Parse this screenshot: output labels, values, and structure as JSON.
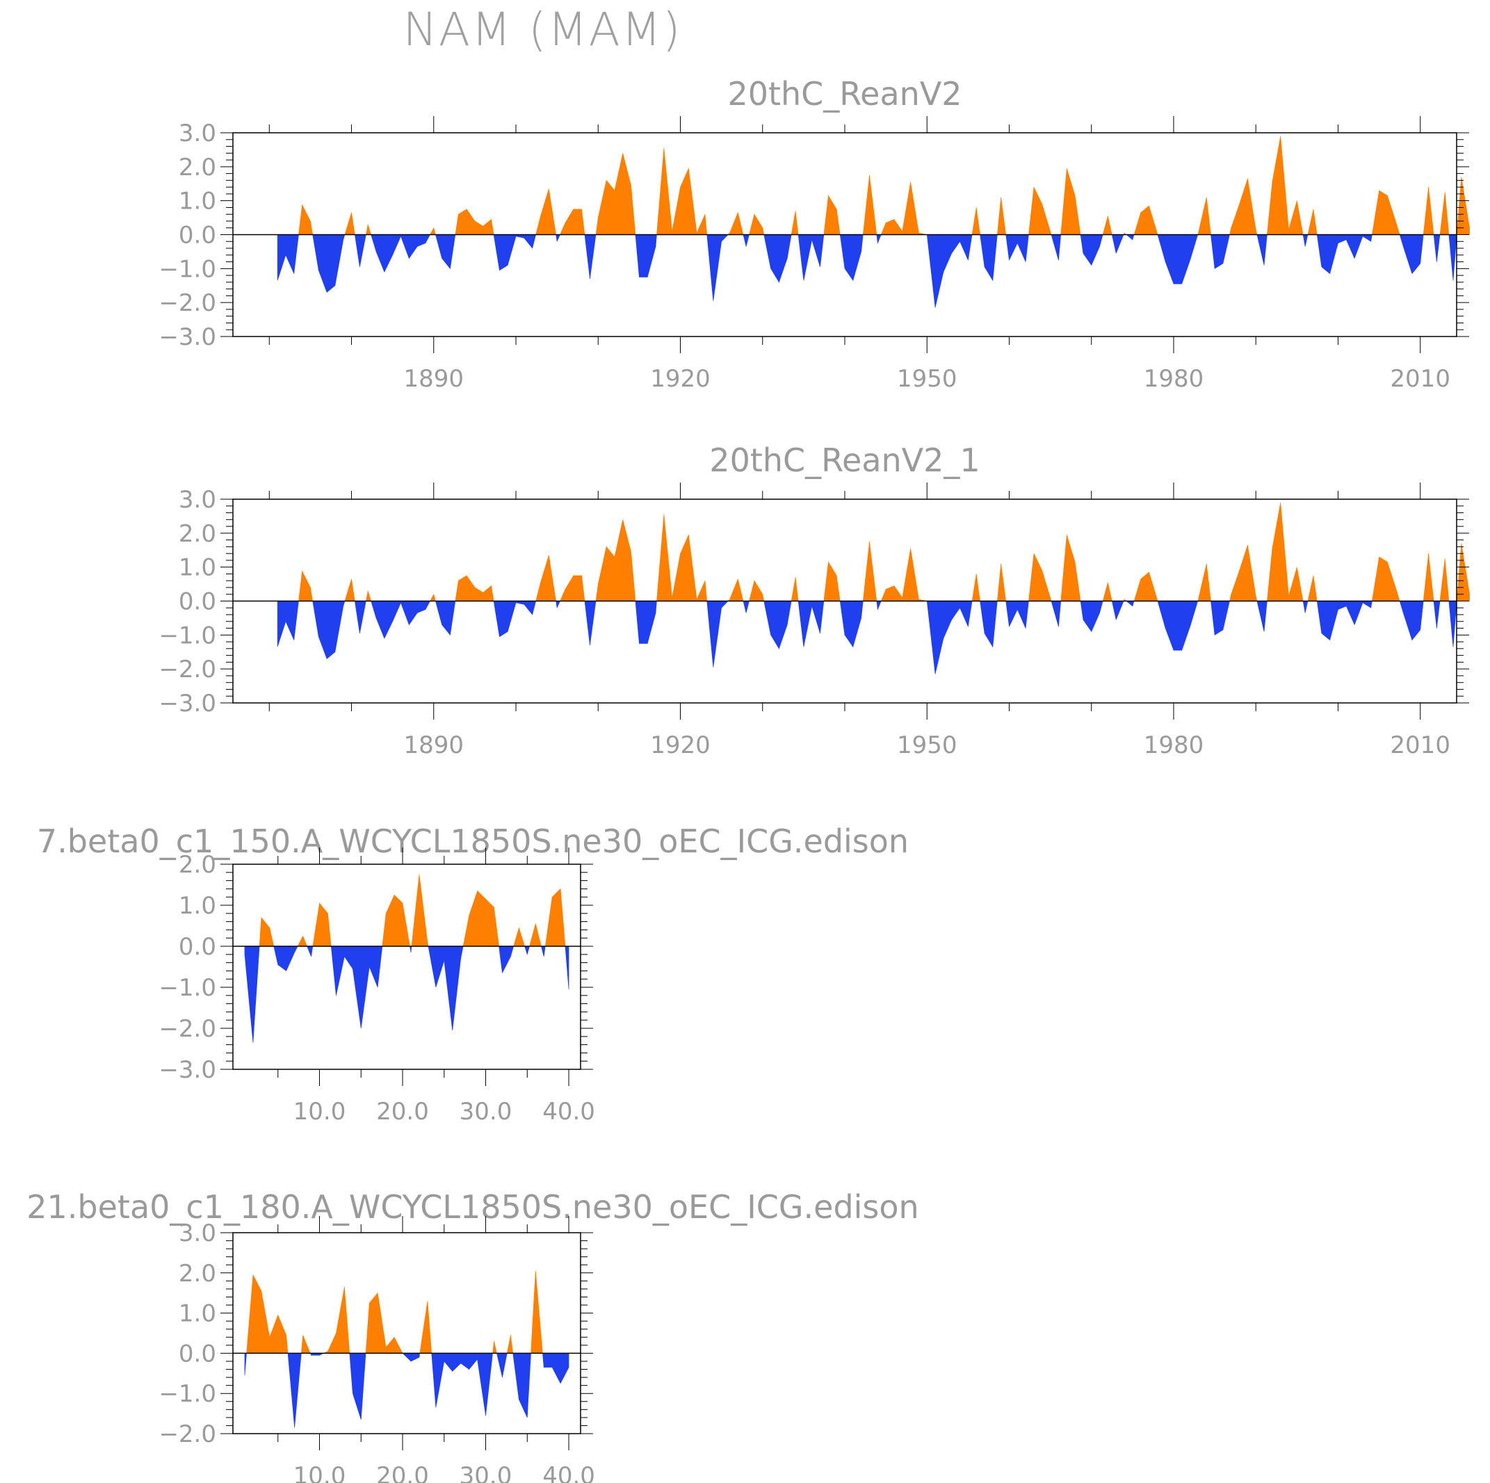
{
  "title": "NAM (MAM)",
  "colors": {
    "positive": "#ff8000",
    "negative": "#2040f0",
    "frame": "#000000",
    "text": "#9a9a9a"
  },
  "chart_data": [
    {
      "type": "area",
      "title": "20thC_ReanV2",
      "xlim": [
        1866,
        2014
      ],
      "ylim": [
        -3,
        3
      ],
      "xticks": [
        1890,
        1920,
        1950,
        1980,
        2010
      ],
      "xtick_labels": [
        "1890",
        "1920",
        "1950",
        "1980",
        "2010"
      ],
      "xminor": [
        1870,
        1880,
        1900,
        1910,
        1930,
        1940,
        1960,
        1970,
        1990,
        2000
      ],
      "yticks": [
        -3,
        -2,
        -1,
        0,
        1,
        2,
        3
      ],
      "ytick_labels": [
        "−3.0",
        "−2.0",
        "−1.0",
        "0.0",
        "1.0",
        "2.0",
        "3.0"
      ],
      "x_start": 1871,
      "values": [
        -1.35,
        -0.6,
        -1.15,
        0.88,
        0.4,
        -1.05,
        -1.7,
        -1.5,
        -0.15,
        0.65,
        -0.95,
        0.3,
        -0.5,
        -1.1,
        -0.6,
        -0.05,
        -0.7,
        -0.35,
        -0.25,
        0.2,
        -0.7,
        -1.0,
        0.6,
        0.75,
        0.4,
        0.25,
        0.45,
        -1.05,
        -0.9,
        -0.05,
        -0.1,
        -0.4,
        0.55,
        1.35,
        -0.2,
        0.35,
        0.75,
        0.75,
        -1.3,
        0.5,
        1.6,
        1.3,
        2.4,
        1.45,
        -1.25,
        -1.25,
        -0.35,
        2.55,
        0.1,
        1.4,
        1.95,
        0.05,
        0.6,
        -1.95,
        -0.2,
        0.05,
        0.65,
        -0.35,
        0.6,
        0.2,
        -1.0,
        -1.4,
        -0.7,
        0.7,
        -1.35,
        -0.15,
        -0.95,
        1.15,
        0.75,
        -1.0,
        -1.35,
        -0.5,
        1.75,
        -0.25,
        0.35,
        0.45,
        0.1,
        1.55,
        0.05,
        0.0,
        -2.15,
        -1.1,
        -0.55,
        -0.2,
        -0.75,
        0.8,
        -0.95,
        -1.35,
        1.1,
        -0.75,
        -0.25,
        -0.8,
        1.4,
        0.9,
        0.1,
        -0.75,
        1.95,
        1.15,
        -0.55,
        -0.9,
        -0.35,
        0.55,
        -0.55,
        0.05,
        -0.15,
        0.65,
        0.85,
        0.05,
        -0.8,
        -1.45,
        -1.45,
        -0.75,
        0.05,
        1.1,
        -1.0,
        -0.85,
        0.2,
        0.9,
        1.65,
        0.15,
        -0.9,
        1.55,
        2.9,
        0.15,
        1.0,
        -0.35,
        0.75,
        -0.95,
        -1.15,
        -0.25,
        -0.15,
        -0.7,
        -0.05,
        -0.2,
        1.3,
        1.15,
        0.4,
        -0.4,
        -1.15,
        -0.85,
        1.4,
        -0.8,
        1.25,
        -1.35,
        1.7,
        0.2
      ]
    },
    {
      "type": "area",
      "title": "20thC_ReanV2_1",
      "xlim": [
        1866,
        2014
      ],
      "ylim": [
        -3,
        3
      ],
      "xticks": [
        1890,
        1920,
        1950,
        1980,
        2010
      ],
      "xtick_labels": [
        "1890",
        "1920",
        "1950",
        "1980",
        "2010"
      ],
      "xminor": [
        1870,
        1880,
        1900,
        1910,
        1930,
        1940,
        1960,
        1970,
        1990,
        2000
      ],
      "yticks": [
        -3,
        -2,
        -1,
        0,
        1,
        2,
        3
      ],
      "ytick_labels": [
        "−3.0",
        "−2.0",
        "−1.0",
        "0.0",
        "1.0",
        "2.0",
        "3.0"
      ],
      "x_start": 1871,
      "values": [
        -1.35,
        -0.6,
        -1.15,
        0.88,
        0.4,
        -1.05,
        -1.7,
        -1.5,
        -0.15,
        0.65,
        -0.95,
        0.3,
        -0.5,
        -1.1,
        -0.6,
        -0.05,
        -0.7,
        -0.35,
        -0.25,
        0.2,
        -0.7,
        -1.0,
        0.6,
        0.75,
        0.4,
        0.25,
        0.45,
        -1.05,
        -0.9,
        -0.05,
        -0.1,
        -0.4,
        0.55,
        1.35,
        -0.2,
        0.35,
        0.75,
        0.75,
        -1.3,
        0.5,
        1.6,
        1.3,
        2.4,
        1.45,
        -1.25,
        -1.25,
        -0.35,
        2.55,
        0.1,
        1.4,
        1.95,
        0.05,
        0.6,
        -1.95,
        -0.2,
        0.05,
        0.65,
        -0.35,
        0.6,
        0.2,
        -1.0,
        -1.4,
        -0.7,
        0.7,
        -1.35,
        -0.15,
        -0.95,
        1.15,
        0.75,
        -1.0,
        -1.35,
        -0.5,
        1.75,
        -0.25,
        0.35,
        0.45,
        0.1,
        1.55,
        0.05,
        0.0,
        -2.15,
        -1.1,
        -0.55,
        -0.2,
        -0.75,
        0.8,
        -0.95,
        -1.35,
        1.1,
        -0.75,
        -0.25,
        -0.8,
        1.4,
        0.9,
        0.1,
        -0.75,
        1.95,
        1.15,
        -0.55,
        -0.9,
        -0.35,
        0.55,
        -0.55,
        0.05,
        -0.15,
        0.65,
        0.85,
        0.05,
        -0.8,
        -1.45,
        -1.45,
        -0.75,
        0.05,
        1.1,
        -1.0,
        -0.85,
        0.2,
        0.9,
        1.65,
        0.15,
        -0.9,
        1.55,
        2.9,
        0.15,
        1.0,
        -0.35,
        0.75,
        -0.95,
        -1.15,
        -0.25,
        -0.15,
        -0.7,
        -0.05,
        -0.2,
        1.3,
        1.15,
        0.4,
        -0.4,
        -1.15,
        -0.85,
        1.4,
        -0.8,
        1.25,
        -1.35,
        1.7,
        0.2
      ]
    },
    {
      "type": "area",
      "title": "7.beta0_c1_150.A_WCYCL1850S.ne30_oEC_ICG.edison",
      "xlim": [
        0,
        41
      ],
      "ylim": [
        -3,
        2
      ],
      "xticks": [
        10,
        20,
        30,
        40
      ],
      "xtick_labels": [
        "10.0",
        "20.0",
        "30.0",
        "40.0"
      ],
      "xminor": [
        5,
        15,
        25,
        35
      ],
      "yticks": [
        -3,
        -2,
        -1,
        0,
        1,
        2
      ],
      "ytick_labels": [
        "−3.0",
        "−2.0",
        "−1.0",
        "0.0",
        "1.0",
        "2.0"
      ],
      "x_start": 1,
      "values": [
        -0.2,
        -2.35,
        0.7,
        0.45,
        -0.45,
        -0.6,
        -0.15,
        0.25,
        -0.25,
        1.05,
        0.8,
        -1.2,
        -0.25,
        -0.55,
        -2.0,
        -0.5,
        -1.0,
        0.8,
        1.25,
        1.05,
        -0.15,
        1.75,
        0.1,
        -1.0,
        -0.35,
        -2.05,
        -0.3,
        0.75,
        1.35,
        1.15,
        0.95,
        -0.65,
        -0.25,
        0.45,
        -0.2,
        0.55,
        -0.25,
        1.2,
        1.4,
        -1.05
      ]
    },
    {
      "type": "area",
      "title": "21.beta0_c1_180.A_WCYCL1850S.ne30_oEC_ICG.edison",
      "xlim": [
        0,
        41
      ],
      "ylim": [
        -2,
        3
      ],
      "xticks": [
        10,
        20,
        30,
        40
      ],
      "xtick_labels": [
        "10.0",
        "20.0",
        "30.0",
        "40.0"
      ],
      "xminor": [
        5,
        15,
        25,
        35
      ],
      "yticks": [
        -2,
        -1,
        0,
        1,
        2,
        3
      ],
      "ytick_labels": [
        "−2.0",
        "−1.0",
        "0.0",
        "1.0",
        "2.0",
        "3.0"
      ],
      "x_start": 1,
      "values": [
        -0.55,
        1.95,
        1.55,
        0.4,
        0.95,
        0.45,
        -1.85,
        0.45,
        -0.05,
        -0.05,
        0.05,
        0.5,
        1.65,
        -1.0,
        -1.65,
        1.25,
        1.5,
        0.15,
        0.4,
        0.0,
        -0.2,
        -0.1,
        1.3,
        -1.35,
        -0.2,
        -0.45,
        -0.25,
        -0.4,
        -0.15,
        -1.55,
        0.3,
        -0.6,
        0.45,
        -1.15,
        -1.6,
        2.05,
        -0.35,
        -0.35,
        -0.75,
        -0.35
      ]
    }
  ]
}
